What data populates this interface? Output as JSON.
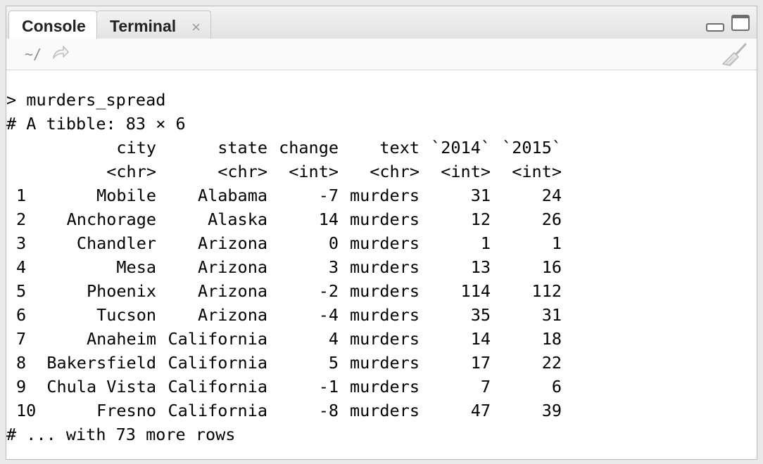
{
  "tabs": [
    {
      "label": "Console",
      "active": true
    },
    {
      "label": "Terminal",
      "active": false,
      "close": "×"
    }
  ],
  "toolbar": {
    "path": "~/"
  },
  "console": {
    "prompt": "> ",
    "command": "murders_spread",
    "meta": "# A tibble: 83 × 6",
    "headers": [
      "city",
      "state",
      "change",
      "text",
      "`2014`",
      "`2015`"
    ],
    "types": [
      "<chr>",
      "<chr>",
      "<int>",
      "<chr>",
      "<int>",
      "<int>"
    ],
    "rows": [
      [
        "1",
        "Mobile",
        "Alabama",
        "-7",
        "murders",
        "31",
        "24"
      ],
      [
        "2",
        "Anchorage",
        "Alaska",
        "14",
        "murders",
        "12",
        "26"
      ],
      [
        "3",
        "Chandler",
        "Arizona",
        "0",
        "murders",
        "1",
        "1"
      ],
      [
        "4",
        "Mesa",
        "Arizona",
        "3",
        "murders",
        "13",
        "16"
      ],
      [
        "5",
        "Phoenix",
        "Arizona",
        "-2",
        "murders",
        "114",
        "112"
      ],
      [
        "6",
        "Tucson",
        "Arizona",
        "-4",
        "murders",
        "35",
        "31"
      ],
      [
        "7",
        "Anaheim",
        "California",
        "4",
        "murders",
        "14",
        "18"
      ],
      [
        "8",
        "Bakersfield",
        "California",
        "5",
        "murders",
        "17",
        "22"
      ],
      [
        "9",
        "Chula Vista",
        "California",
        "-1",
        "murders",
        "7",
        "6"
      ],
      [
        "10",
        "Fresno",
        "California",
        "-8",
        "murders",
        "47",
        "39"
      ]
    ],
    "footer": "# ... with 73 more rows"
  }
}
